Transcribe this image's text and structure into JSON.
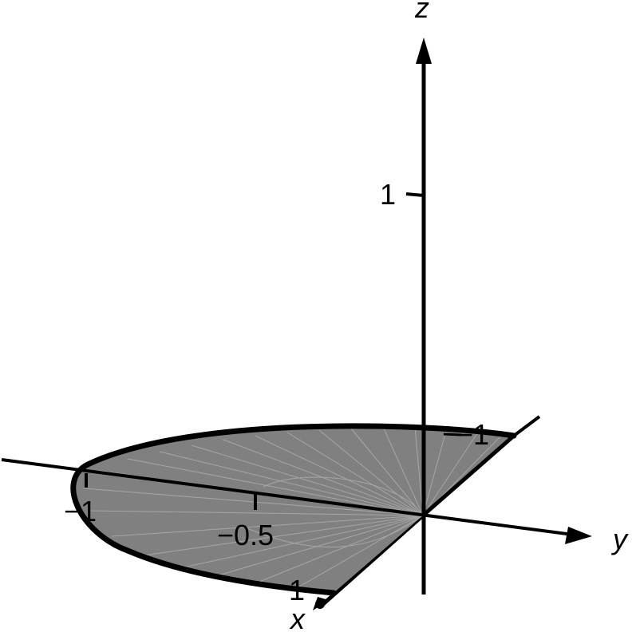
{
  "figure": {
    "axes": {
      "x": {
        "name": "x"
      },
      "y": {
        "name": "y"
      },
      "z": {
        "name": "z"
      }
    },
    "tick_labels": {
      "x_one": "1",
      "y_minus_one": "−1",
      "y_minus_half": "−0.5",
      "z_one": "1",
      "y_minus_one_back": "−1"
    },
    "colors": {
      "region_fill": "#808080",
      "stroke": "#000000",
      "mesh": "#a6a6a6",
      "background": "#ffffff"
    }
  }
}
